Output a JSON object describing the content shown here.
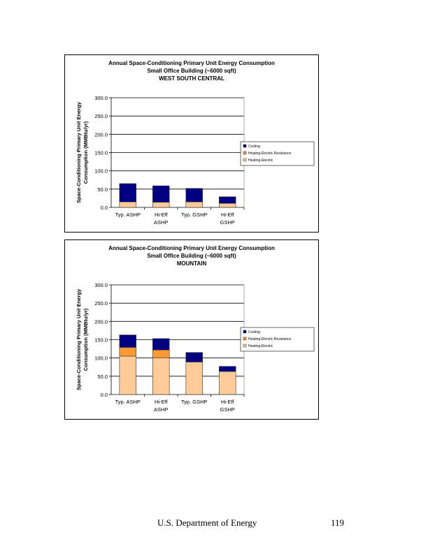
{
  "colors": {
    "Cooling": "#000080",
    "Heating-Electric Resistance": "#ff9933",
    "Heating-Electric": "#ffcc99"
  },
  "chart_data": [
    {
      "type": "bar",
      "stacked": true,
      "title": [
        "Annual Space-Conditioning Primary Unit Energy Consumption",
        "Small Office Building (~6000 sqft)",
        "WEST SOUTH CENTRAL"
      ],
      "ylabel": [
        "Space-Conditioning Primary Unit Energy",
        "Consumption (MMBtu/yr)"
      ],
      "ylim": [
        0,
        300
      ],
      "yticks": [
        "0.0",
        "50.0",
        "100.0",
        "150.0",
        "200.0",
        "250.0",
        "300.0"
      ],
      "categories": [
        [
          "Typ. ASHP"
        ],
        [
          "Hi-Eff",
          "ASHP"
        ],
        [
          "Typ. GSHP"
        ],
        [
          "Hi-Eff",
          "GSHP"
        ]
      ],
      "legend_position": "right",
      "grid": true,
      "legend": [
        "Cooling",
        "Heating-Electric Resistance",
        "Heating-Electric"
      ],
      "series": [
        {
          "name": "Heating-Electric",
          "values": [
            15,
            14,
            15,
            11
          ]
        },
        {
          "name": "Heating-Electric Resistance",
          "values": [
            0,
            0,
            0,
            0
          ]
        },
        {
          "name": "Cooling",
          "values": [
            50,
            45,
            37,
            18
          ]
        }
      ]
    },
    {
      "type": "bar",
      "stacked": true,
      "title": [
        "Annual Space-Conditioning Primary Unit Energy Consumption",
        "Small Office Building (~6000 sqft)",
        "MOUNTAIN"
      ],
      "ylabel": [
        "Space-Conditioning Primary Unit Energy",
        "Consumption (MMBtu/yr)"
      ],
      "ylim": [
        0,
        300
      ],
      "yticks": [
        "0.0",
        "50.0",
        "100.0",
        "150.0",
        "200.0",
        "250.0",
        "300.0"
      ],
      "categories": [
        [
          "Typ. ASHP"
        ],
        [
          "Hi-Eff",
          "ASHP"
        ],
        [
          "Typ. GSHP"
        ],
        [
          "Hi-Eff",
          "GSHP"
        ]
      ],
      "legend_position": "right",
      "grid": true,
      "legend": [
        "Cooling",
        "Heating-Electric Resistance",
        "Heating-Electric"
      ],
      "series": [
        {
          "name": "Heating-Electric",
          "values": [
            105,
            100,
            89,
            63
          ]
        },
        {
          "name": "Heating-Electric Resistance",
          "values": [
            24,
            22,
            0,
            0
          ]
        },
        {
          "name": "Cooling",
          "values": [
            34,
            31,
            26,
            14
          ]
        }
      ]
    }
  ],
  "footer": {
    "org": "U.S. Department of Energy",
    "page": "119"
  }
}
